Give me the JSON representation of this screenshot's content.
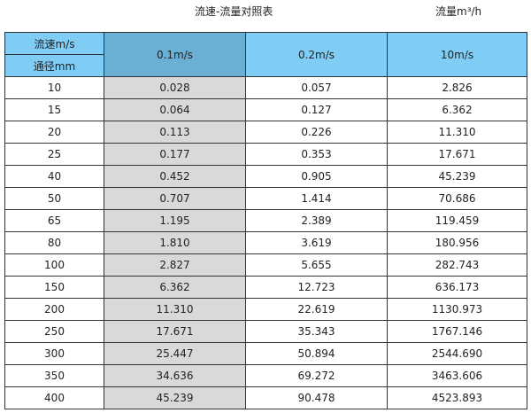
{
  "title": "流速-流量对照表",
  "unit": "流量m³/h",
  "colors": {
    "header": "#7fcdf5",
    "header_highlight": "#6aafd4",
    "highlight_column": "#d9d9d9"
  },
  "header": {
    "velocity_label": "流速m/s",
    "diameter_label": "通径mm",
    "columns": [
      "0.1m/s",
      "0.2m/s",
      "10m/s"
    ]
  },
  "rows": [
    [
      "10",
      "0.028",
      "0.057",
      "2.826"
    ],
    [
      "15",
      "0.064",
      "0.127",
      "6.362"
    ],
    [
      "20",
      "0.113",
      "0.226",
      "11.310"
    ],
    [
      "25",
      "0.177",
      "0.353",
      "17.671"
    ],
    [
      "40",
      "0.452",
      "0.905",
      "45.239"
    ],
    [
      "50",
      "0.707",
      "1.414",
      "70.686"
    ],
    [
      "65",
      "1.195",
      "2.389",
      "119.459"
    ],
    [
      "80",
      "1.810",
      "3.619",
      "180.956"
    ],
    [
      "100",
      "2.827",
      "5.655",
      "282.743"
    ],
    [
      "150",
      "6.362",
      "12.723",
      "636.173"
    ],
    [
      "200",
      "11.310",
      "22.619",
      "1130.973"
    ],
    [
      "250",
      "17.671",
      "35.343",
      "1767.146"
    ],
    [
      "300",
      "25.447",
      "50.894",
      "2544.690"
    ],
    [
      "350",
      "34.636",
      "69.272",
      "3463.606"
    ],
    [
      "400",
      "45.239",
      "90.478",
      "4523.893"
    ]
  ]
}
